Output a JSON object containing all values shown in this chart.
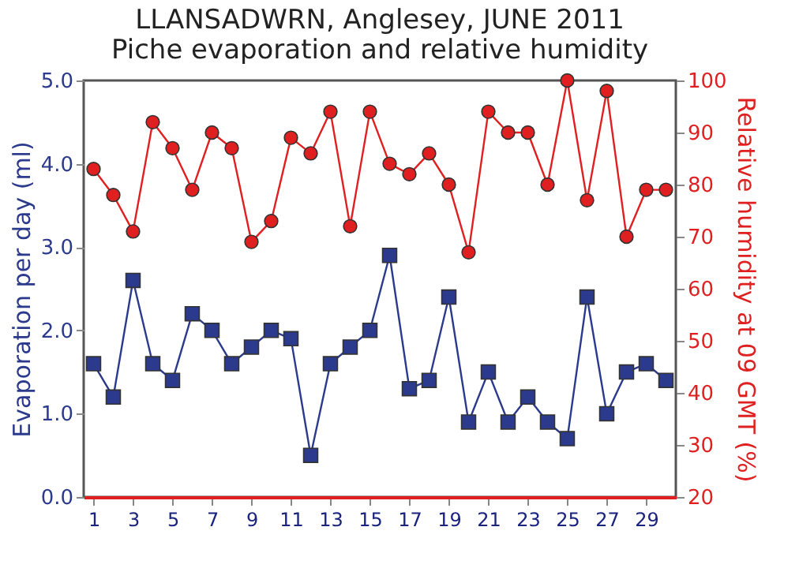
{
  "chart_data": {
    "type": "line",
    "title": "LLANSADWRN, Anglesey, JUNE 2011",
    "subtitle": "Piche evaporation and relative humidity",
    "ylabel": "Evaporation per day (ml)",
    "y2label": "Relative humidity at 09 GMT (%)",
    "x": [
      1,
      2,
      3,
      4,
      5,
      6,
      7,
      8,
      9,
      10,
      11,
      12,
      13,
      14,
      15,
      16,
      17,
      18,
      19,
      20,
      21,
      22,
      23,
      24,
      25,
      26,
      27,
      28,
      29,
      30
    ],
    "xlim": [
      0.5,
      30.5
    ],
    "xticks": [
      1,
      3,
      5,
      7,
      9,
      11,
      13,
      15,
      17,
      19,
      21,
      23,
      25,
      27,
      29
    ],
    "ylim": [
      0,
      5
    ],
    "yticks": [
      {
        "value": 0,
        "label": "0.0"
      },
      {
        "value": 1,
        "label": "1.0"
      },
      {
        "value": 2,
        "label": "2.0"
      },
      {
        "value": 3,
        "label": "3.0"
      },
      {
        "value": 4,
        "label": "4.0"
      },
      {
        "value": 5,
        "label": "5.0"
      }
    ],
    "y2lim": [
      20,
      100
    ],
    "y2ticks": [
      20,
      30,
      40,
      50,
      60,
      70,
      80,
      90,
      100
    ],
    "grid": false,
    "series": [
      {
        "color": "#2b3a8c",
        "marker": "square",
        "values": [
          1.6,
          1.2,
          2.6,
          1.6,
          1.4,
          2.2,
          2.0,
          1.6,
          1.8,
          2.0,
          1.9,
          0.5,
          1.6,
          1.8,
          2.0,
          2.9,
          1.3,
          1.4,
          2.4,
          0.9,
          1.5,
          0.9,
          1.2,
          0.9,
          0.7,
          2.4,
          1.0,
          1.5,
          1.6,
          1.4
        ]
      },
      {
        "color": "#e02020",
        "marker": "circle",
        "axis": "y2",
        "values": [
          83,
          78,
          71,
          92,
          87,
          79,
          90,
          87,
          69,
          73,
          89,
          86,
          94,
          72,
          94,
          84,
          82,
          86,
          80,
          67,
          94,
          90,
          90,
          80,
          100,
          77,
          98,
          70,
          79,
          79
        ]
      }
    ]
  }
}
